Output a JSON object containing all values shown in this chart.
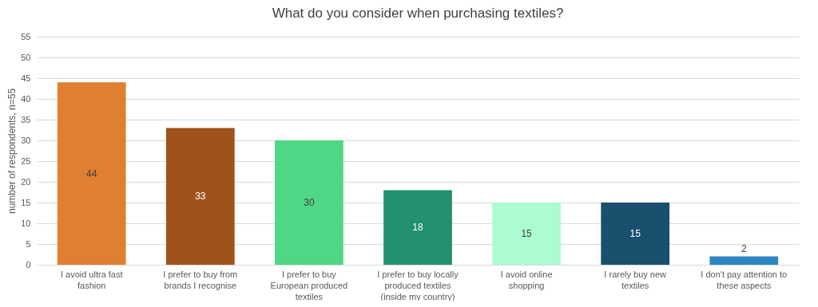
{
  "chart_data": {
    "type": "bar",
    "title": "What do you consider when purchasing textiles?",
    "ylabel": "number of respondents, n=55",
    "categories": [
      "I avoid ultra fast fashion",
      "I prefer to buy from brands I recognise",
      "I prefer to buy European produced textiles",
      "I prefer to buy locally produced textiles (inside my country)",
      "I avoid online shopping",
      "I rarely buy new textiles",
      "I don't pay attention to these aspects"
    ],
    "values": [
      44,
      33,
      30,
      18,
      15,
      15,
      2
    ],
    "colors": [
      "#e07f32",
      "#a0521c",
      "#50d785",
      "#23906f",
      "#abfcd0",
      "#1b4f6e",
      "#2e86c1"
    ],
    "ylim": [
      0,
      55
    ],
    "yticks": [
      0,
      5,
      10,
      15,
      20,
      25,
      30,
      35,
      40,
      45,
      50,
      55
    ],
    "grid": "y",
    "data_labels": true
  }
}
